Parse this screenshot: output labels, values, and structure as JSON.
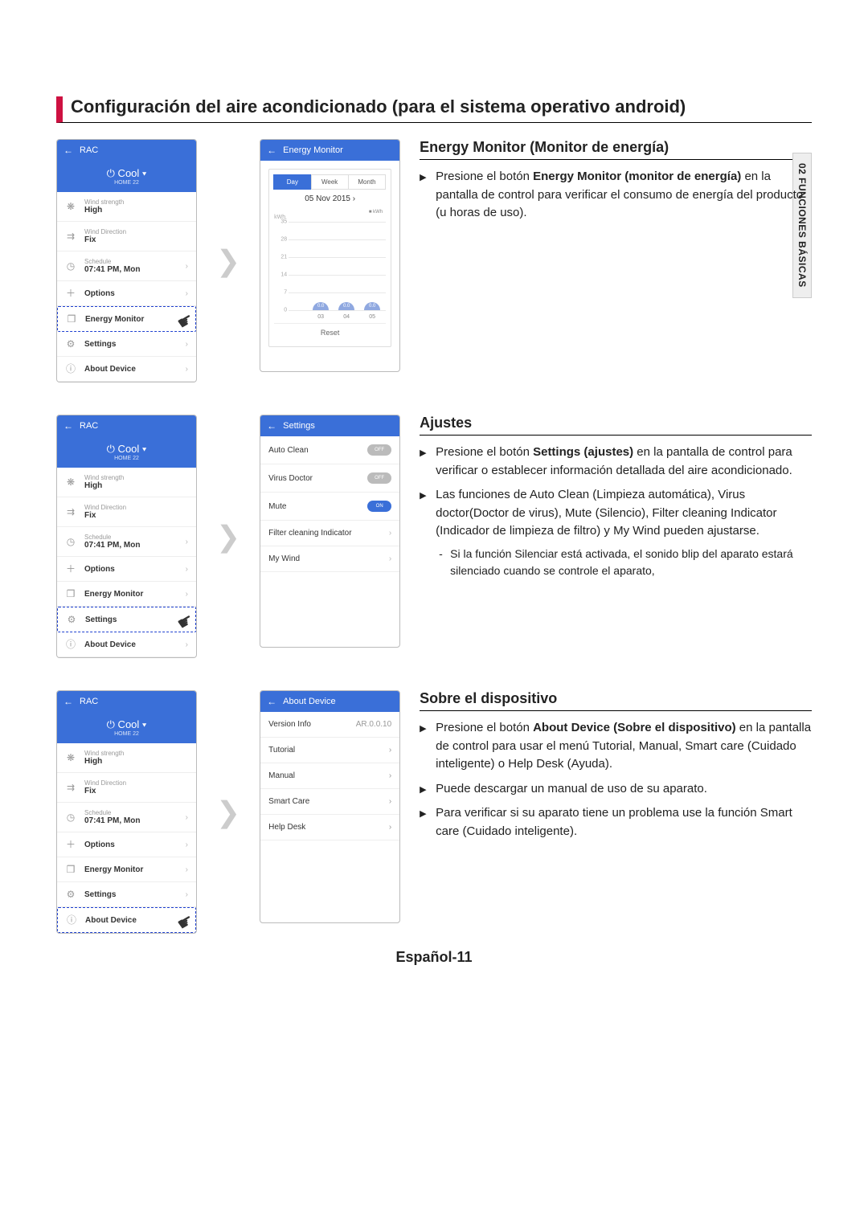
{
  "sideTab": "02  FUNCIONES BÁSICAS",
  "title": "Configuración del aire acondicionado (para el sistema operativo android)",
  "footer": "Español-11",
  "rac": {
    "header": "RAC",
    "mode": "Cool ▾",
    "modeSub": "HOME  22",
    "items": [
      {
        "icon": "❋",
        "lbl": "Wind strength",
        "val": "High",
        "chev": ""
      },
      {
        "icon": "⇉",
        "lbl": "Wind Direction",
        "val": "Fix",
        "chev": ""
      },
      {
        "icon": "◷",
        "lbl": "Schedule",
        "val": "07:41 PM, Mon",
        "chev": "›"
      },
      {
        "icon": "＋",
        "lbl": "",
        "val": "Options",
        "chev": "›"
      },
      {
        "icon": "❒",
        "lbl": "",
        "val": "Energy Monitor",
        "chev": "›"
      },
      {
        "icon": "⚙",
        "lbl": "",
        "val": "Settings",
        "chev": "›"
      },
      {
        "icon": "ⓘ",
        "lbl": "",
        "val": "About Device",
        "chev": "›"
      }
    ]
  },
  "sec1": {
    "heading": "Energy Monitor (Monitor de energía)",
    "bullets": [
      {
        "html": "Presione el botón <b>Energy Monitor (monitor de energía)</b> en la pantalla de control para verificar el consumo de energía del producto (u  horas de uso)."
      }
    ],
    "energyScreen": {
      "header": "Energy Monitor",
      "tabs": [
        "Day",
        "Week",
        "Month"
      ],
      "activeTab": 0,
      "date": "05 Nov 2015  ›",
      "legend": "■ kWh",
      "yLabel": "kWh",
      "yticks": [
        35,
        28,
        21,
        14,
        7,
        0
      ],
      "bars": [
        {
          "x": "03",
          "h": 10,
          "v": "0.0"
        },
        {
          "x": "04",
          "h": 10,
          "v": "0.0"
        },
        {
          "x": "05",
          "h": 10,
          "v": "0.0"
        }
      ],
      "reset": "Reset"
    },
    "highlightIndex": 4
  },
  "sec2": {
    "heading": "Ajustes",
    "bullets": [
      {
        "html": "Presione el botón <b>Settings (ajustes)</b> en la pantalla de control para verificar o establecer información detallada del aire acondicionado."
      },
      {
        "html": "Las funciones de Auto Clean (Limpieza automática), Virus doctor(Doctor de virus), Mute (Silencio), Filter cleaning Indicator (Indicador de limpieza de filtro) y My Wind pueden ajustarse.",
        "sub": "Si la función Silenciar está activada, el sonido blip del aparato estará silenciado cuando se controle el aparato,"
      }
    ],
    "settingsScreen": {
      "header": "Settings",
      "rows": [
        {
          "l": "Auto Clean",
          "type": "toggle",
          "state": "OFF"
        },
        {
          "l": "Virus Doctor",
          "type": "toggle",
          "state": "OFF"
        },
        {
          "l": "Mute",
          "type": "toggle",
          "state": "ON"
        },
        {
          "l": "Filter cleaning Indicator",
          "type": "chev"
        },
        {
          "l": "My Wind",
          "type": "chev"
        }
      ]
    },
    "highlightIndex": 5
  },
  "sec3": {
    "heading": "Sobre el dispositivo",
    "bullets": [
      {
        "html": "Presione el botón <b>About Device (Sobre el dispositivo)</b> en la pantalla de control para usar el menú Tutorial, Manual, Smart care (Cuidado inteligente) o Help Desk (Ayuda)."
      },
      {
        "html": "Puede descargar un manual de uso de su aparato."
      },
      {
        "html": "Para verificar si su aparato tiene un problema use la función Smart care (Cuidado inteligente)."
      }
    ],
    "aboutScreen": {
      "header": "About Device",
      "rows": [
        {
          "l": "Version Info",
          "r": "AR.0.0.10"
        },
        {
          "l": "Tutorial",
          "r": "›"
        },
        {
          "l": "Manual",
          "r": "›"
        },
        {
          "l": "Smart Care",
          "r": "›"
        },
        {
          "l": "Help Desk",
          "r": "›"
        }
      ]
    },
    "highlightIndex": 6
  }
}
